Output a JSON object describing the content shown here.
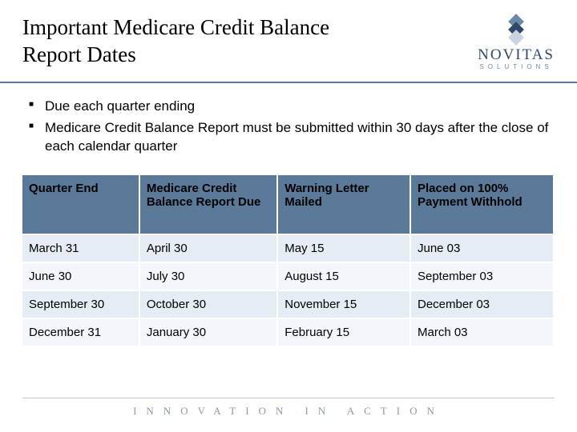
{
  "title": "Important Medicare Credit Balance Report Dates",
  "logo": {
    "name": "NOVITAS",
    "sub": "SOLUTIONS"
  },
  "bullets": [
    "Due each quarter ending",
    "Medicare Credit Balance Report must be submitted within 30 days after the close of each calendar quarter"
  ],
  "table": {
    "columns": [
      "Quarter End",
      "Medicare Credit Balance Report Due",
      "Warning Letter Mailed",
      "Placed on 100% Payment Withhold"
    ],
    "rows": [
      [
        "March 31",
        "April 30",
        "May 15",
        "June 03"
      ],
      [
        "June 30",
        "July 30",
        "August 15",
        "September 03"
      ],
      [
        "September 30",
        "October 30",
        "November 15",
        "December 03"
      ],
      [
        "December 31",
        "January 30",
        "February 15",
        "March 03"
      ]
    ],
    "header_bg": "#5b7a99",
    "row_odd_bg": "#e6ecf3",
    "row_even_bg": "#f3f6fa",
    "col_widths_pct": [
      22,
      26,
      25,
      27
    ]
  },
  "footer": "INNOVATION IN ACTION"
}
